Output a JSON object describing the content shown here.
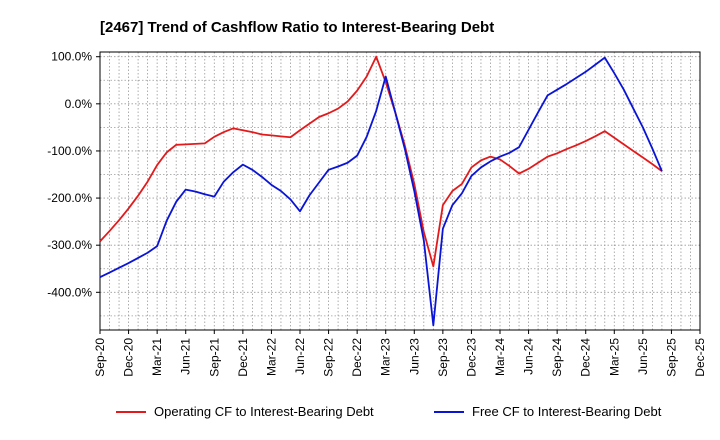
{
  "chart_data": {
    "type": "line",
    "title": "[2467]  Trend of Cashflow Ratio to Interest-Bearing Debt",
    "xlabel": "",
    "ylabel": "",
    "ylim": [
      -480,
      110
    ],
    "y_ticks": [
      100,
      0,
      -100,
      -200,
      -300,
      -400
    ],
    "y_tick_labels": [
      "100.0%",
      "0.0%",
      "-100.0%",
      "-200.0%",
      "-300.0%",
      "-400.0%"
    ],
    "x_tick_labels": [
      "Sep-20",
      "Dec-20",
      "Mar-21",
      "Jun-21",
      "Sep-21",
      "Dec-21",
      "Mar-22",
      "Jun-22",
      "Sep-22",
      "Dec-22",
      "Mar-23",
      "Jun-23",
      "Sep-23",
      "Dec-23",
      "Mar-24",
      "Jun-24",
      "Sep-24",
      "Dec-24",
      "Mar-25",
      "Jun-25",
      "Sep-25",
      "Dec-25"
    ],
    "grid": true,
    "legend_position": "bottom",
    "series": [
      {
        "name": "Operating CF to Interest-Bearing Debt",
        "color": "#e31a1c",
        "points": [
          [
            0,
            -292
          ],
          [
            1,
            -270
          ],
          [
            2,
            -247
          ],
          [
            3,
            -222
          ],
          [
            4,
            -195
          ],
          [
            5,
            -165
          ],
          [
            6,
            -130
          ],
          [
            7,
            -103
          ],
          [
            8,
            -87
          ],
          [
            9,
            -86
          ],
          [
            10,
            -85
          ],
          [
            11,
            -84
          ],
          [
            12,
            -70
          ],
          [
            13,
            -60
          ],
          [
            14,
            -52
          ],
          [
            15,
            -56
          ],
          [
            16,
            -60
          ],
          [
            17,
            -65
          ],
          [
            18,
            -67
          ],
          [
            19,
            -69
          ],
          [
            20,
            -71
          ],
          [
            21,
            -56
          ],
          [
            22,
            -42
          ],
          [
            23,
            -28
          ],
          [
            24,
            -20
          ],
          [
            25,
            -10
          ],
          [
            26,
            5
          ],
          [
            27,
            28
          ],
          [
            28,
            58
          ],
          [
            29,
            100
          ],
          [
            30,
            46
          ],
          [
            31,
            -18
          ],
          [
            32,
            -88
          ],
          [
            33,
            -170
          ],
          [
            34,
            -272
          ],
          [
            35,
            -345
          ],
          [
            36,
            -215
          ],
          [
            37,
            -185
          ],
          [
            38,
            -170
          ],
          [
            39,
            -135
          ],
          [
            40,
            -120
          ],
          [
            41,
            -112
          ],
          [
            42,
            -118
          ],
          [
            43,
            -132
          ],
          [
            44,
            -148
          ],
          [
            45,
            -138
          ],
          [
            46,
            -125
          ],
          [
            47,
            -112
          ],
          [
            48,
            -105
          ],
          [
            49,
            -96
          ],
          [
            50,
            -88
          ],
          [
            51,
            -79
          ],
          [
            52,
            -69
          ],
          [
            53,
            -58
          ],
          [
            54,
            -72
          ],
          [
            55,
            -86
          ],
          [
            56,
            -100
          ],
          [
            57,
            -114
          ],
          [
            58,
            -128
          ],
          [
            59,
            -143
          ]
        ]
      },
      {
        "name": "Free CF to Interest-Bearing Debt",
        "color": "#0a14d6",
        "points": [
          [
            0,
            -368
          ],
          [
            1,
            -358
          ],
          [
            2,
            -348
          ],
          [
            3,
            -338
          ],
          [
            4,
            -327
          ],
          [
            5,
            -316
          ],
          [
            6,
            -302
          ],
          [
            7,
            -248
          ],
          [
            8,
            -208
          ],
          [
            9,
            -182
          ],
          [
            10,
            -186
          ],
          [
            11,
            -192
          ],
          [
            12,
            -197
          ],
          [
            13,
            -165
          ],
          [
            14,
            -145
          ],
          [
            15,
            -129
          ],
          [
            16,
            -140
          ],
          [
            17,
            -155
          ],
          [
            18,
            -172
          ],
          [
            19,
            -185
          ],
          [
            20,
            -203
          ],
          [
            21,
            -228
          ],
          [
            22,
            -194
          ],
          [
            23,
            -167
          ],
          [
            24,
            -140
          ],
          [
            25,
            -133
          ],
          [
            26,
            -125
          ],
          [
            27,
            -110
          ],
          [
            28,
            -70
          ],
          [
            29,
            -15
          ],
          [
            30,
            58
          ],
          [
            31,
            -18
          ],
          [
            32,
            -95
          ],
          [
            33,
            -185
          ],
          [
            34,
            -290
          ],
          [
            35,
            -470
          ],
          [
            36,
            -265
          ],
          [
            37,
            -215
          ],
          [
            38,
            -190
          ],
          [
            39,
            -153
          ],
          [
            40,
            -135
          ],
          [
            41,
            -122
          ],
          [
            42,
            -112
          ],
          [
            43,
            -104
          ],
          [
            44,
            -92
          ],
          [
            45,
            -55
          ],
          [
            46,
            -18
          ],
          [
            47,
            18
          ],
          [
            48,
            30
          ],
          [
            49,
            42
          ],
          [
            50,
            55
          ],
          [
            51,
            68
          ],
          [
            52,
            83
          ],
          [
            53,
            98
          ],
          [
            54,
            65
          ],
          [
            55,
            30
          ],
          [
            56,
            -10
          ],
          [
            57,
            -50
          ],
          [
            58,
            -95
          ],
          [
            59,
            -143
          ]
        ]
      }
    ]
  }
}
